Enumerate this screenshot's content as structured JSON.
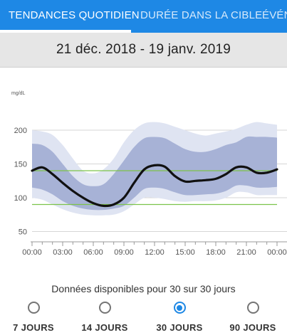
{
  "tabs": [
    {
      "label": "TENDANCES QUOTIDIEN",
      "active": true
    },
    {
      "label": "DURÉE DANS LA CIBLE",
      "active": false
    },
    {
      "label": "ÉVÉN",
      "active": false
    }
  ],
  "date_range": "21 déc. 2018 - 19 janv. 2019",
  "colors": {
    "accent": "#1e88e5",
    "outer_band": "#dfe4f2",
    "inner_band": "#a7b2d6",
    "target_line": "#7cc34a",
    "median": "#111111"
  },
  "chart_data": {
    "type": "area",
    "ylabel": "mg/dL",
    "x_ticks": [
      "00:00",
      "03:00",
      "06:00",
      "09:00",
      "12:00",
      "15:00",
      "18:00",
      "21:00",
      "00:00"
    ],
    "y_ticks": [
      200,
      150,
      100,
      50
    ],
    "ylim": [
      40,
      210
    ],
    "x_hours": [
      0,
      1,
      2,
      3,
      4,
      5,
      6,
      7,
      8,
      9,
      10,
      11,
      12,
      13,
      14,
      15,
      16,
      17,
      18,
      19,
      20,
      21,
      22,
      23,
      24
    ],
    "target_range": [
      90,
      140
    ],
    "series": [
      {
        "name": "",
        "role": "p90",
        "values": [
          200,
          198,
          193,
          178,
          158,
          140,
          136,
          142,
          158,
          182,
          200,
          210,
          212,
          210,
          205,
          200,
          195,
          192,
          195,
          198,
          202,
          208,
          212,
          210,
          208
        ]
      },
      {
        "name": "",
        "role": "p75",
        "values": [
          180,
          178,
          168,
          150,
          132,
          120,
          117,
          120,
          135,
          155,
          175,
          188,
          190,
          188,
          180,
          172,
          168,
          168,
          172,
          178,
          182,
          190,
          190,
          190,
          189
        ]
      },
      {
        "name": "",
        "role": "median",
        "values": [
          140,
          145,
          135,
          122,
          110,
          100,
          92,
          88,
          90,
          100,
          122,
          142,
          148,
          146,
          132,
          124,
          125,
          126,
          128,
          135,
          145,
          145,
          137,
          137,
          142
        ]
      },
      {
        "name": "",
        "role": "p25",
        "values": [
          115,
          112,
          105,
          95,
          88,
          84,
          82,
          82,
          84,
          88,
          100,
          113,
          115,
          113,
          108,
          104,
          104,
          105,
          106,
          110,
          118,
          118,
          115,
          115,
          116
        ]
      },
      {
        "name": "",
        "role": "p10",
        "values": [
          100,
          97,
          90,
          83,
          78,
          75,
          74,
          74,
          75,
          80,
          90,
          100,
          100,
          98,
          95,
          94,
          95,
          95,
          96,
          100,
          108,
          108,
          104,
          104,
          104
        ]
      }
    ]
  },
  "availability_text": "Données disponibles pour 30 sur 30 jours",
  "period_options": [
    {
      "label": "7 JOURS",
      "selected": false
    },
    {
      "label": "14 JOURS",
      "selected": false
    },
    {
      "label": "30 JOURS",
      "selected": true
    },
    {
      "label": "90 JOURS",
      "selected": false
    }
  ]
}
